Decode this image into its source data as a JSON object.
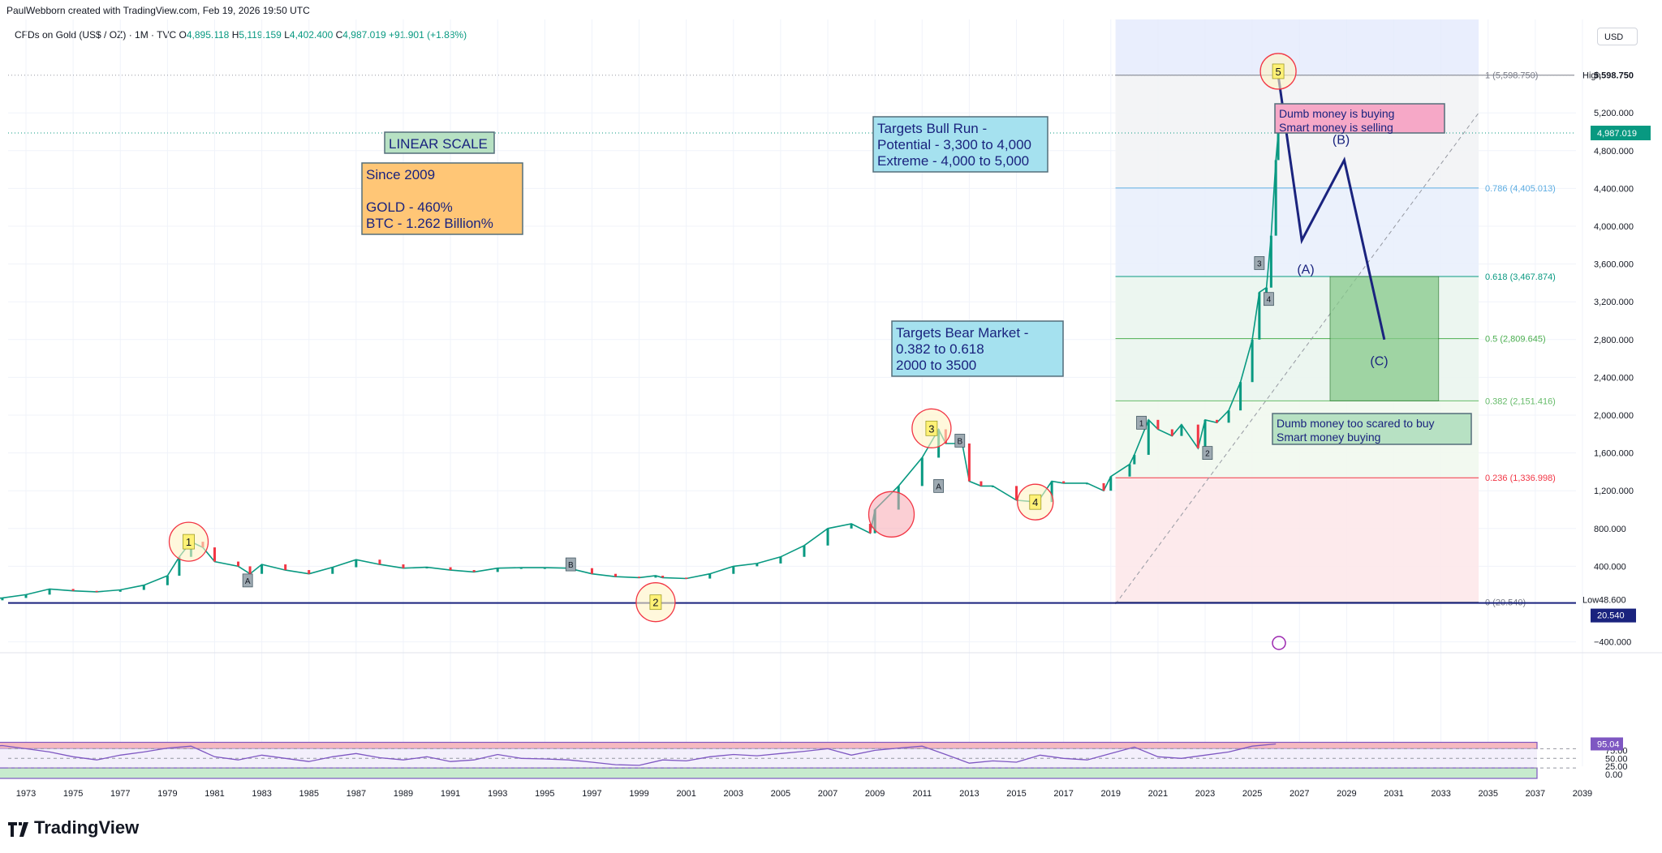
{
  "header": {
    "attribution": "PaulWebborn created with TradingView.com, Feb 19, 2026 19:50 UTC",
    "symbol": "CFDs on Gold (US$ / OZ) · 1M · TVC",
    "ohlc": {
      "o": "4,895.118",
      "h": "5,119.159",
      "l": "4,402.400",
      "c": "4,987.019",
      "chg": "+91.901 (+1.88%)"
    },
    "currency": "USD"
  },
  "brand": "TradingView",
  "colors": {
    "up": "#089981",
    "down": "#f23645",
    "rsi": "#7e57c2",
    "navy": "#1a237e"
  },
  "chart_data": [
    {
      "type": "candlestick",
      "title": "CFDs on Gold (US$ / OZ)",
      "x_ticks": [
        "1973",
        "1975",
        "1977",
        "1979",
        "1981",
        "1983",
        "1985",
        "1987",
        "1989",
        "1991",
        "1993",
        "1995",
        "1997",
        "1999",
        "2001",
        "2003",
        "2005",
        "2007",
        "2009",
        "2011",
        "2013",
        "2015",
        "2017",
        "2019",
        "2021",
        "2023",
        "2025",
        "2027",
        "2029",
        "2031",
        "2033",
        "2035",
        "2037",
        "2039"
      ],
      "y_ticks": [
        "5,200.000",
        "4,800.000",
        "4,400.000",
        "4,000.000",
        "3,600.000",
        "3,200.000",
        "2,800.000",
        "2,400.000",
        "2,000.000",
        "1,600.000",
        "1,200.000",
        "800.000",
        "400.000",
        "−400.000"
      ],
      "price_labels": {
        "high": {
          "label": "High",
          "value": "5,598.750"
        },
        "last": "4,987.019",
        "low": {
          "label": "Low",
          "value": "48.600"
        },
        "low_close": "20.540"
      },
      "series": [
        {
          "name": "Gold monthly",
          "x": [
            1971,
            1972,
            1973,
            1974,
            1975,
            1976,
            1977,
            1978,
            1979,
            1979.5,
            1980,
            1980.5,
            1981,
            1982,
            1982.5,
            1983,
            1984,
            1985,
            1986,
            1987,
            1988,
            1989,
            1990,
            1991,
            1992,
            1993,
            1994,
            1995,
            1996,
            1997,
            1998,
            1999,
            1999.7,
            2000,
            2001,
            2002,
            2003,
            2004,
            2005,
            2006,
            2007,
            2008,
            2008.8,
            2009,
            2010,
            2011,
            2011.7,
            2012,
            2012.7,
            2013,
            2013.5,
            2014,
            2015,
            2015.9,
            2016.5,
            2017,
            2018,
            2018.7,
            2019,
            2019.8,
            2020,
            2020.6,
            2021,
            2021.6,
            2022,
            2022.7,
            2023,
            2023.5,
            2024,
            2024.5,
            2025,
            2025.3,
            2025.6,
            2025.8,
            2026.0,
            2026.1
          ],
          "y": [
            40,
            65,
            100,
            160,
            140,
            130,
            150,
            200,
            300,
            500,
            660,
            600,
            450,
            400,
            320,
            420,
            360,
            320,
            390,
            470,
            420,
            380,
            390,
            360,
            340,
            380,
            385,
            385,
            380,
            320,
            290,
            280,
            300,
            280,
            270,
            320,
            400,
            430,
            500,
            620,
            800,
            850,
            750,
            1000,
            1250,
            1550,
            1850,
            1700,
            1700,
            1300,
            1250,
            1250,
            1100,
            1080,
            1300,
            1280,
            1280,
            1200,
            1350,
            1480,
            1580,
            1950,
            1850,
            1780,
            1900,
            1650,
            1950,
            1920,
            2050,
            2350,
            2800,
            3300,
            3350,
            3900,
            4700,
            4987
          ]
        }
      ],
      "fib_levels": [
        {
          "ratio": "1",
          "label": "1 (5,598.750)",
          "value": 5598.75
        },
        {
          "ratio": "0.786",
          "label": "0.786 (4,405.013)",
          "value": 4405.013
        },
        {
          "ratio": "0.618",
          "label": "0.618 (3,467.874)",
          "value": 3467.874
        },
        {
          "ratio": "0.5",
          "label": "0.5 (2,809.645)",
          "value": 2809.645
        },
        {
          "ratio": "0.382",
          "label": "0.382 (2,151.416)",
          "value": 2151.416
        },
        {
          "ratio": "0.236",
          "label": "0.236 (1,336.998)",
          "value": 1336.998
        },
        {
          "ratio": "0",
          "label": "0 (20.540)",
          "value": 20.54
        }
      ],
      "wave_labels": [
        "1",
        "2",
        "3",
        "4",
        "5"
      ],
      "sub_wave_labels": [
        "A",
        "B",
        "A",
        "B",
        "1",
        "2",
        "3",
        "4"
      ],
      "projection": {
        "points": [
          [
            2026.1,
            5598
          ],
          [
            2027.1,
            3850
          ],
          [
            2028.9,
            4700
          ],
          [
            2030.6,
            2800
          ]
        ],
        "labels": [
          "(A)",
          "(B)",
          "(C)"
        ]
      },
      "annotations": {
        "linear_scale": "LINEAR SCALE",
        "since": [
          "Since 2009",
          "",
          "GOLD - 460%",
          "BTC - 1.262 Billion%"
        ],
        "bull_targets": [
          "Targets Bull Run -",
          "Potential - 3,300 to 4,000",
          "Extreme - 4,000 to 5,000"
        ],
        "bear_targets": [
          "Targets Bear Market -",
          "0.382 to 0.618",
          "2000  to  3500"
        ],
        "top_note": [
          "Dumb money is buying",
          "Smart money is selling"
        ],
        "bottom_note": [
          "Dumb money too scared to buy",
          "Smart money buying"
        ]
      }
    },
    {
      "type": "line",
      "title": "RSI",
      "y_ticks": [
        "75.00",
        "50.00",
        "25.00",
        "0.00"
      ],
      "last_value": "95.04",
      "x": [
        1971,
        1972,
        1973,
        1974,
        1975,
        1976,
        1977,
        1978,
        1979,
        1980,
        1981,
        1982,
        1983,
        1984,
        1985,
        1986,
        1987,
        1988,
        1989,
        1990,
        1991,
        1992,
        1993,
        1994,
        1995,
        1996,
        1997,
        1998,
        1999,
        2000,
        2001,
        2002,
        2003,
        2004,
        2005,
        2006,
        2007,
        2008,
        2009,
        2010,
        2011,
        2012,
        2013,
        2014,
        2015,
        2016,
        2017,
        2018,
        2019,
        2020,
        2021,
        2022,
        2023,
        2024,
        2025,
        2026
      ],
      "y": [
        85,
        90,
        80,
        70,
        55,
        45,
        60,
        70,
        82,
        88,
        55,
        45,
        60,
        50,
        40,
        55,
        65,
        52,
        45,
        55,
        40,
        45,
        62,
        50,
        48,
        45,
        38,
        30,
        28,
        45,
        42,
        55,
        62,
        58,
        65,
        72,
        80,
        60,
        75,
        82,
        88,
        62,
        35,
        42,
        38,
        60,
        50,
        45,
        65,
        85,
        55,
        50,
        60,
        70,
        88,
        95
      ]
    }
  ]
}
